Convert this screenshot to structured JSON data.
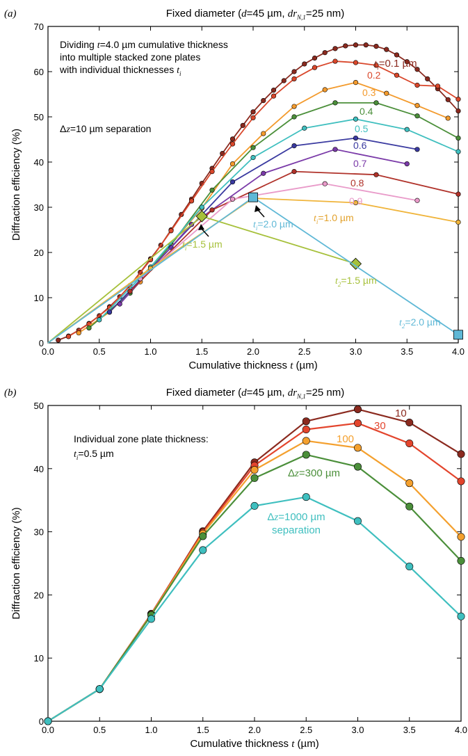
{
  "chart_data": [
    {
      "type": "line",
      "panel_label": "(a)",
      "title": "Fixed diameter (d=45 µm, dr_N,1=25 nm)",
      "title_parts": {
        "pre": "Fixed diameter (",
        "d": "d",
        "d_val": "=45 µm, ",
        "dr": "dr",
        "dr_sub": "N,1",
        "post": "=25 nm)"
      },
      "xlabel": "Cumulative thickness t (µm)",
      "xlabel_parts": {
        "pre": "Cumulative thickness ",
        "var": "t",
        "post": " (µm)"
      },
      "ylabel": "Diffraction efficiency (%)",
      "xlim": [
        0,
        4
      ],
      "ylim": [
        0,
        70
      ],
      "xticks": [
        "0.0",
        "0.5",
        "1.0",
        "1.5",
        "2.0",
        "2.5",
        "3.0",
        "3.5",
        "4.0"
      ],
      "yticks": [
        "0",
        "10",
        "20",
        "30",
        "40",
        "50",
        "60",
        "70"
      ],
      "annotations": {
        "desc_line1": "Dividing t=4.0 µm cumulative thickness",
        "desc_line2": "into multiple stacked zone plates",
        "desc_line3": "with individual thicknesses t_i",
        "separation": "Δz=10 µm separation",
        "ti_1p5": "t_i=1.5 µm",
        "ti_2p0": "t_i=2.0 µm",
        "ti_1p0": "t_i=1.0 µm",
        "t2_1p5": "t_2=1.5 µm",
        "t2_2p0": "t_2=2.0 µm"
      },
      "series": [
        {
          "label": "t_i=0.1 µm",
          "color": "#8b2a1f",
          "x": [
            0.1,
            0.2,
            0.3,
            0.4,
            0.5,
            0.6,
            0.7,
            0.8,
            0.9,
            1.0,
            1.1,
            1.2,
            1.3,
            1.4,
            1.5,
            1.6,
            1.7,
            1.8,
            1.9,
            2.0,
            2.1,
            2.2,
            2.3,
            2.4,
            2.5,
            2.6,
            2.7,
            2.8,
            2.9,
            3.0,
            3.1,
            3.2,
            3.3,
            3.4,
            3.5,
            3.6,
            3.7,
            3.8,
            3.9,
            4.0
          ],
          "y": [
            0.6,
            1.5,
            2.8,
            4.3,
            6.0,
            8.0,
            10.2,
            12.7,
            15.6,
            18.6,
            21.6,
            25.0,
            28.4,
            31.8,
            35.3,
            38.6,
            41.9,
            45.1,
            48.1,
            51.1,
            53.6,
            55.9,
            58.0,
            60.0,
            61.7,
            63.0,
            64.2,
            65.1,
            65.7,
            65.9,
            65.9,
            65.6,
            64.9,
            63.7,
            62.2,
            60.5,
            58.4,
            56.2,
            53.8,
            51.3
          ]
        },
        {
          "label": "0.2",
          "color": "#d9472b",
          "x": [
            0.2,
            0.4,
            0.6,
            0.8,
            1.0,
            1.2,
            1.4,
            1.6,
            1.8,
            2.0,
            2.2,
            2.4,
            2.6,
            2.8,
            3.0,
            3.2,
            3.4,
            3.6,
            3.8,
            4.0
          ],
          "y": [
            1.4,
            4.2,
            7.8,
            12.6,
            18.4,
            24.8,
            31.4,
            37.9,
            44.0,
            49.8,
            54.6,
            58.4,
            60.9,
            62.3,
            62.0,
            61.4,
            59.2,
            57.0,
            56.8,
            53.9
          ]
        },
        {
          "label": "0.3",
          "color": "#f39a2c",
          "x": [
            0.3,
            0.6,
            0.9,
            1.2,
            1.5,
            1.8,
            2.1,
            2.4,
            2.7,
            3.0,
            3.3,
            3.6,
            3.9
          ],
          "y": [
            2.2,
            6.8,
            13.5,
            21.8,
            29.8,
            39.6,
            46.3,
            52.3,
            56.0,
            57.6,
            55.2,
            52.5,
            49.7
          ]
        },
        {
          "label": "0.4",
          "color": "#4b8f3a",
          "x": [
            0.4,
            0.8,
            1.2,
            1.6,
            2.0,
            2.4,
            2.8,
            3.2,
            3.6,
            4.0
          ],
          "y": [
            3.3,
            11.0,
            21.7,
            33.8,
            43.2,
            50.0,
            53.1,
            53.1,
            50.2,
            45.3
          ]
        },
        {
          "label": "0.5",
          "color": "#3fbfbf",
          "x": [
            0.5,
            1.0,
            1.5,
            2.0,
            2.5,
            3.0,
            3.5,
            4.0
          ],
          "y": [
            5.1,
            16.8,
            30.0,
            41.0,
            47.5,
            49.5,
            47.2,
            42.3
          ]
        },
        {
          "label": "0.6",
          "color": "#3a3aa0",
          "x": [
            0.6,
            1.2,
            1.8,
            2.4,
            3.0,
            3.6
          ],
          "y": [
            6.8,
            21.1,
            35.6,
            43.6,
            45.3,
            42.8
          ]
        },
        {
          "label": "0.7",
          "color": "#7a3aa8",
          "x": [
            0.7,
            1.4,
            2.1,
            2.8,
            3.5
          ],
          "y": [
            8.6,
            26.2,
            37.5,
            42.8,
            39.6
          ]
        },
        {
          "label": "0.8",
          "color": "#b0322a",
          "x": [
            0.8,
            1.6,
            2.4,
            3.2,
            4.0
          ],
          "y": [
            11.4,
            29.4,
            37.9,
            37.2,
            32.9
          ]
        },
        {
          "label": "0.9",
          "color": "#e99ac9",
          "x": [
            0.9,
            1.8,
            2.7,
            3.6
          ],
          "y": [
            14.2,
            31.8,
            35.2,
            31.5
          ]
        },
        {
          "label": "t_i=1.0 µm",
          "color": "#f0b43a",
          "x": [
            0.0,
            1.0,
            2.0,
            3.0,
            4.0
          ],
          "y": [
            0.0,
            16.5,
            32.0,
            31.0,
            26.7
          ]
        },
        {
          "label": "t_i=1.5 µm",
          "color": "#a6c03a",
          "marker": "diamond",
          "x": [
            0.0,
            1.5,
            3.0
          ],
          "y": [
            0.0,
            28.0,
            17.5
          ]
        },
        {
          "label": "t_i=2.0 µm",
          "color": "#5fb8d6",
          "marker": "square",
          "x": [
            0.0,
            2.0,
            4.0
          ],
          "y": [
            0.0,
            32.2,
            1.8
          ]
        }
      ]
    },
    {
      "type": "line",
      "panel_label": "(b)",
      "title": "Fixed diameter (d=45 µm, dr_N,1=25 nm)",
      "xlabel": "Cumulative thickness t (µm)",
      "ylabel": "Diffraction efficiency (%)",
      "xlim": [
        0,
        4
      ],
      "ylim": [
        0,
        50
      ],
      "xticks": [
        "0.0",
        "0.5",
        "1.0",
        "1.5",
        "2.0",
        "2.5",
        "3.0",
        "3.5",
        "4.0"
      ],
      "yticks": [
        "0",
        "10",
        "20",
        "30",
        "40",
        "50"
      ],
      "annotations": {
        "desc_line1": "Individual zone plate thickness:",
        "desc_line2": "t_i=0.5 µm",
        "sep_line1": "Δz=1000 µm",
        "sep_line2": "separation"
      },
      "x": [
        0.0,
        0.5,
        1.0,
        1.5,
        2.0,
        2.5,
        3.0,
        3.5,
        4.0
      ],
      "series": [
        {
          "label": "10",
          "color": "#8b2a1f",
          "y": [
            0.0,
            5.1,
            17.0,
            30.1,
            41.0,
            47.5,
            49.4,
            47.3,
            42.3
          ]
        },
        {
          "label": "30",
          "color": "#e3452d",
          "y": [
            0.0,
            5.1,
            17.0,
            29.9,
            40.5,
            46.2,
            47.2,
            44.0,
            38.0
          ]
        },
        {
          "label": "100",
          "color": "#f4a02e",
          "y": [
            0.0,
            5.1,
            16.9,
            29.7,
            39.8,
            44.4,
            43.3,
            37.7,
            29.2
          ]
        },
        {
          "label": "Δz=300 µm",
          "color": "#4b8f3a",
          "y": [
            0.0,
            5.1,
            16.8,
            29.3,
            38.5,
            42.2,
            40.3,
            34.0,
            25.4
          ]
        },
        {
          "label": "Δz=1000 µm separation",
          "color": "#3fbfbf",
          "y": [
            0.0,
            5.1,
            16.2,
            27.1,
            34.1,
            35.5,
            31.7,
            24.5,
            16.6
          ]
        }
      ]
    }
  ]
}
